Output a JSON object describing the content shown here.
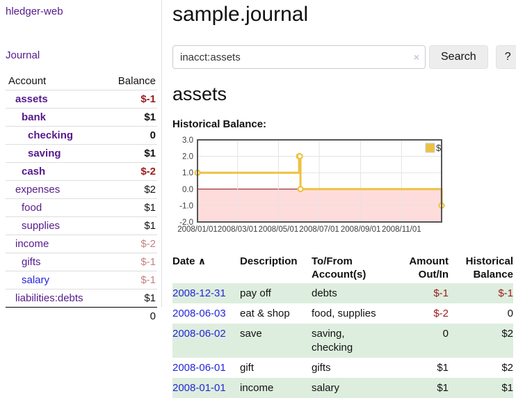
{
  "app": {
    "title": "hledger-web",
    "nav_journal": "Journal"
  },
  "sidebar": {
    "col_account": "Account",
    "col_balance": "Balance",
    "accounts": [
      {
        "name": "assets",
        "depth": 1,
        "bold": true,
        "blue": false,
        "balance": "$-1",
        "balance_style": "neg-strong"
      },
      {
        "name": "bank",
        "depth": 2,
        "bold": true,
        "blue": false,
        "balance": "$1",
        "balance_style": "pos"
      },
      {
        "name": "checking",
        "depth": 3,
        "bold": true,
        "blue": false,
        "balance": "0",
        "balance_style": "pos"
      },
      {
        "name": "saving",
        "depth": 3,
        "bold": true,
        "blue": false,
        "balance": "$1",
        "balance_style": "pos"
      },
      {
        "name": "cash",
        "depth": 2,
        "bold": true,
        "blue": false,
        "balance": "$-2",
        "balance_style": "neg-strong"
      },
      {
        "name": "expenses",
        "depth": 1,
        "bold": false,
        "blue": false,
        "balance": "$2",
        "balance_style": "pos"
      },
      {
        "name": "food",
        "depth": 2,
        "bold": false,
        "blue": false,
        "balance": "$1",
        "balance_style": "pos"
      },
      {
        "name": "supplies",
        "depth": 2,
        "bold": false,
        "blue": false,
        "balance": "$1",
        "balance_style": "pos"
      },
      {
        "name": "income",
        "depth": 1,
        "bold": false,
        "blue": false,
        "balance": "$-2",
        "balance_style": "neg-light"
      },
      {
        "name": "gifts",
        "depth": 2,
        "bold": false,
        "blue": false,
        "balance": "$-1",
        "balance_style": "neg-light"
      },
      {
        "name": "salary",
        "depth": 2,
        "bold": false,
        "blue": true,
        "balance": "$-1",
        "balance_style": "neg-light"
      },
      {
        "name": "liabilities:debts",
        "depth": 1,
        "bold": false,
        "blue": false,
        "balance": "$1",
        "balance_style": "pos"
      }
    ],
    "total": "0"
  },
  "header": {
    "title": "sample.journal"
  },
  "search": {
    "value": "inacct:assets",
    "clear_icon": "×",
    "button_label": "Search",
    "help_label": "?"
  },
  "main": {
    "section_title": "assets",
    "chart_label": "Historical Balance:"
  },
  "chart_data": {
    "type": "line",
    "step": true,
    "title": "Historical Balance:",
    "series": [
      {
        "name": "$",
        "color": "#edc240",
        "points": [
          [
            "2008-01-01",
            1
          ],
          [
            "2008-06-01",
            2
          ],
          [
            "2008-06-02",
            2
          ],
          [
            "2008-06-03",
            0
          ],
          [
            "2008-12-31",
            -1
          ]
        ]
      }
    ],
    "xlim": [
      "2008-01-01",
      "2008-12-31"
    ],
    "ylim": [
      -2,
      3
    ],
    "x_ticks": [
      "2008/01/01",
      "2008/03/01",
      "2008/05/01",
      "2008/07/01",
      "2008/09/01",
      "2008/11/01"
    ],
    "y_ticks": [
      3.0,
      2.0,
      1.0,
      0.0,
      -1.0,
      -2.0
    ],
    "grid": true,
    "legend_position": "top-right",
    "zero_line_color": "#8b0000",
    "negative_region_color": "#ffdcdc",
    "border_color": "#555555",
    "gridline_color": "#e3e3e3"
  },
  "txn_table": {
    "headers": {
      "date": "Date",
      "sort_indicator": "∧",
      "description": "Description",
      "accounts": "To/From\nAccount(s)",
      "amount": "Amount\nOut/In",
      "balance": "Historical\nBalance"
    },
    "rows": [
      {
        "date": "2008-12-31",
        "description": "pay off",
        "accounts": "debts",
        "amount": "$-1",
        "amount_neg": true,
        "balance": "$-1",
        "balance_neg": true
      },
      {
        "date": "2008-06-03",
        "description": "eat & shop",
        "accounts": "food, supplies",
        "amount": "$-2",
        "amount_neg": true,
        "balance": "0",
        "balance_neg": false
      },
      {
        "date": "2008-06-02",
        "description": "save",
        "accounts": "saving, checking",
        "amount": "0",
        "amount_neg": false,
        "balance": "$2",
        "balance_neg": false
      },
      {
        "date": "2008-06-01",
        "description": "gift",
        "accounts": "gifts",
        "amount": "$1",
        "amount_neg": false,
        "balance": "$2",
        "balance_neg": false
      },
      {
        "date": "2008-01-01",
        "description": "income",
        "accounts": "salary",
        "amount": "$1",
        "amount_neg": false,
        "balance": "$1",
        "balance_neg": false
      }
    ]
  }
}
